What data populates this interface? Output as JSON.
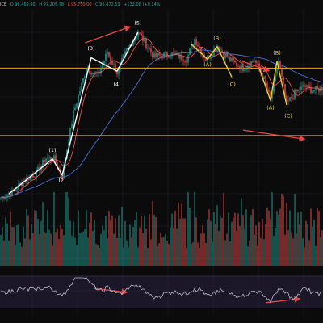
{
  "header": {
    "symbol": "ICE",
    "open": "O 96,469.90",
    "high": "H 97,205.78",
    "low": "L 95,750.00",
    "close": "C 96,472.59",
    "change": "+132.08 (+0.14%)"
  },
  "colors": {
    "background": "#0b0b0c",
    "up": "#26a69a",
    "down": "#ef5350",
    "level_line": "#f0a330",
    "arrow": "#e84848",
    "impulse_label": "#ffffff",
    "corrective_label": "#e6d240",
    "ma_fast": "#e05555",
    "ma_slow": "#4a6fd6",
    "indicator_line": "#b8b8c8",
    "indicator_band": "#2a2040"
  },
  "chart_data": {
    "type": "candlestick",
    "x_unit": "bar index",
    "xlim": [
      0,
      199
    ],
    "ylim": [
      62,
      108
    ],
    "price_path": [
      [
        0,
        66.2
      ],
      [
        7,
        67.3
      ],
      [
        15,
        70.2
      ],
      [
        22,
        71.6
      ],
      [
        28,
        75.0
      ],
      [
        33,
        74.8
      ],
      [
        38,
        71.0
      ],
      [
        45,
        85.0
      ],
      [
        53,
        95.0
      ],
      [
        60,
        93.4
      ],
      [
        66,
        98.5
      ],
      [
        72,
        94.0
      ],
      [
        78,
        99.0
      ],
      [
        85,
        103.0
      ],
      [
        95,
        97.5
      ],
      [
        105,
        98.2
      ],
      [
        115,
        97.0
      ],
      [
        120,
        101.5
      ],
      [
        127,
        97.0
      ],
      [
        132,
        98.8
      ],
      [
        134,
        99.9
      ],
      [
        138,
        98.0
      ],
      [
        145,
        96.0
      ],
      [
        150,
        95.0
      ],
      [
        157,
        96.8
      ],
      [
        163,
        92.5
      ],
      [
        167,
        88.0
      ],
      [
        172,
        96.5
      ],
      [
        177,
        87.0
      ],
      [
        182,
        89.5
      ],
      [
        188,
        91.0
      ],
      [
        193,
        90.0
      ],
      [
        199,
        90.5
      ]
    ],
    "horizontal_levels": [
      95.0,
      80.0
    ],
    "wave_labels": [
      {
        "text": "(1)",
        "x": 32,
        "y": 76.4,
        "group": "impulse"
      },
      {
        "text": "(2)",
        "x": 38,
        "y": 69.6,
        "group": "impulse"
      },
      {
        "text": "(3)",
        "x": 56,
        "y": 99.0,
        "group": "impulse"
      },
      {
        "text": "(4)",
        "x": 72,
        "y": 91.0,
        "group": "impulse"
      },
      {
        "text": "(5)",
        "x": 85,
        "y": 104.7,
        "group": "impulse"
      },
      {
        "text": "(A)",
        "x": 128,
        "y": 95.4,
        "group": "corrective"
      },
      {
        "text": "(B)",
        "x": 134,
        "y": 101.3,
        "group": "corrective"
      },
      {
        "text": "(C)",
        "x": 143,
        "y": 91.0,
        "group": "corrective"
      },
      {
        "text": "(B)",
        "x": 171,
        "y": 98.0,
        "group": "corrective"
      },
      {
        "text": "(A)",
        "x": 167,
        "y": 85.8,
        "group": "corrective"
      },
      {
        "text": "(C)",
        "x": 178,
        "y": 84.0,
        "group": "corrective"
      }
    ],
    "wave_paths": [
      {
        "group": "impulse",
        "points": [
          [
            5,
            67.0
          ],
          [
            32,
            74.8
          ],
          [
            38,
            71.2
          ],
          [
            56,
            97.3
          ],
          [
            72,
            94.3
          ],
          [
            85,
            103.0
          ]
        ]
      },
      {
        "group": "corrective",
        "points": [
          [
            118,
            100.3
          ],
          [
            128,
            97.0
          ],
          [
            134,
            99.8
          ],
          [
            143,
            93.0
          ]
        ]
      },
      {
        "group": "corrective",
        "points": [
          [
            160,
            95.0
          ],
          [
            167,
            87.8
          ],
          [
            171,
            96.5
          ],
          [
            177,
            86.8
          ]
        ]
      }
    ],
    "annotation_arrows": [
      {
        "panel": "price",
        "from": [
          52,
          100.6
        ],
        "to": [
          80,
          104.2
        ]
      },
      {
        "panel": "price",
        "from": [
          148,
          96.7
        ],
        "to": [
          166,
          94.4
        ]
      },
      {
        "panel": "price",
        "from": [
          150,
          81.2
        ],
        "to": [
          188,
          79.2
        ]
      },
      {
        "panel": "indicator",
        "from": [
          58,
          0.62
        ],
        "to": [
          78,
          0.5
        ]
      },
      {
        "panel": "indicator",
        "from": [
          164,
          0.18
        ],
        "to": [
          185,
          0.3
        ]
      }
    ],
    "moving_averages": [
      {
        "period": 9,
        "color_key": "ma_fast"
      },
      {
        "period": 50,
        "color_key": "ma_slow"
      }
    ],
    "volume_panel": true,
    "indicator_panel": true
  }
}
